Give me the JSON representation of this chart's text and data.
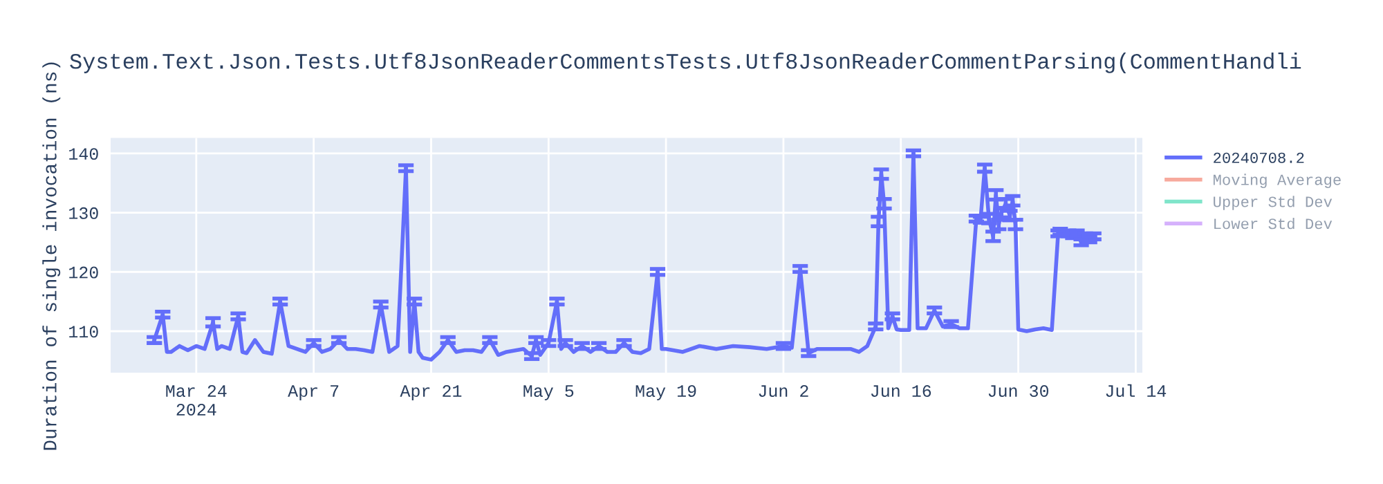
{
  "chart_data": {
    "type": "line",
    "title": "System.Text.Json.Tests.Utf8JsonReaderCommentsTests.Utf8JsonReaderCommentParsing(CommentHandli",
    "ylabel": "Duration of single invocation (ns)",
    "xlim": [
      "2024-03-13T19:00",
      "2024-07-14T19:00"
    ],
    "xticks": [
      {
        "value": "2024-03-24",
        "label": "Mar 24\n2024"
      },
      {
        "value": "2024-04-07",
        "label": "Apr 7"
      },
      {
        "value": "2024-04-21",
        "label": "Apr 21"
      },
      {
        "value": "2024-05-05",
        "label": "May 5"
      },
      {
        "value": "2024-05-19",
        "label": "May 19"
      },
      {
        "value": "2024-06-02",
        "label": "Jun 2"
      },
      {
        "value": "2024-06-16",
        "label": "Jun 16"
      },
      {
        "value": "2024-06-30",
        "label": "Jun 30"
      },
      {
        "value": "2024-07-14",
        "label": "Jul 14"
      }
    ],
    "ylim": [
      103,
      142.6
    ],
    "yticks": [
      110,
      120,
      130,
      140
    ],
    "grid": true,
    "legend": "top right",
    "marker": "none",
    "line_style": "solid",
    "series": [
      {
        "name": "20240708.2",
        "color": "#636efa",
        "x": [
          "2024-03-19",
          "2024-03-20",
          "2024-03-20T12:00",
          "2024-03-21",
          "2024-03-22",
          "2024-03-23",
          "2024-03-24",
          "2024-03-25",
          "2024-03-26",
          "2024-03-26T12:00",
          "2024-03-27",
          "2024-03-28",
          "2024-03-29",
          "2024-03-29T12:00",
          "2024-03-30",
          "2024-03-31",
          "2024-04-01",
          "2024-04-02",
          "2024-04-03",
          "2024-04-04",
          "2024-04-05",
          "2024-04-06",
          "2024-04-07",
          "2024-04-08",
          "2024-04-09",
          "2024-04-10",
          "2024-04-11",
          "2024-04-12",
          "2024-04-13",
          "2024-04-14",
          "2024-04-15",
          "2024-04-16",
          "2024-04-17",
          "2024-04-18",
          "2024-04-18T12:00",
          "2024-04-19",
          "2024-04-19T12:00",
          "2024-04-20",
          "2024-04-21",
          "2024-04-22",
          "2024-04-23",
          "2024-04-24",
          "2024-04-25",
          "2024-04-26",
          "2024-04-27",
          "2024-04-28",
          "2024-04-29",
          "2024-04-30",
          "2024-05-02",
          "2024-05-03",
          "2024-05-03T12:00",
          "2024-05-04",
          "2024-05-05",
          "2024-05-06",
          "2024-05-06T12:00",
          "2024-05-07",
          "2024-05-08",
          "2024-05-09",
          "2024-05-10",
          "2024-05-11",
          "2024-05-12",
          "2024-05-13",
          "2024-05-14",
          "2024-05-15",
          "2024-05-16",
          "2024-05-17",
          "2024-05-18",
          "2024-05-18T12:00",
          "2024-05-19",
          "2024-05-21",
          "2024-05-23",
          "2024-05-25",
          "2024-05-27",
          "2024-05-29",
          "2024-05-31",
          "2024-06-02",
          "2024-06-03",
          "2024-06-04",
          "2024-06-05",
          "2024-06-06",
          "2024-06-08",
          "2024-06-10",
          "2024-06-11",
          "2024-06-12",
          "2024-06-13",
          "2024-06-13T08:00",
          "2024-06-13T16:00",
          "2024-06-14",
          "2024-06-14T12:00",
          "2024-06-15",
          "2024-06-15T12:00",
          "2024-06-16",
          "2024-06-17",
          "2024-06-17T12:00",
          "2024-06-18",
          "2024-06-19",
          "2024-06-20",
          "2024-06-21",
          "2024-06-22",
          "2024-06-23",
          "2024-06-24",
          "2024-06-25",
          "2024-06-25T12:00",
          "2024-06-26",
          "2024-06-26T12:00",
          "2024-06-27",
          "2024-06-27T08:00",
          "2024-06-27T16:00",
          "2024-06-28",
          "2024-06-28T12:00",
          "2024-06-29",
          "2024-06-29T08:00",
          "2024-06-29T16:00",
          "2024-06-30",
          "2024-07-01",
          "2024-07-02",
          "2024-07-03",
          "2024-07-04",
          "2024-07-04T18:00",
          "2024-07-05",
          "2024-07-06",
          "2024-07-06T12:00",
          "2024-07-07",
          "2024-07-07T12:00",
          "2024-07-08",
          "2024-07-08T12:00",
          "2024-07-09"
        ],
        "values": [
          108.5,
          112.8,
          106.5,
          106.5,
          107.5,
          106.8,
          107.5,
          107,
          111.5,
          107,
          107.5,
          107,
          112.5,
          106.5,
          106.3,
          108.5,
          106.5,
          106.2,
          115,
          107.5,
          107,
          106.5,
          108,
          106.5,
          107,
          108.5,
          107,
          107,
          106.8,
          106.5,
          114.5,
          106.5,
          107.5,
          137.5,
          106.5,
          115,
          106.5,
          105.5,
          105.2,
          106.5,
          108.5,
          106.5,
          106.8,
          106.8,
          106.5,
          108.5,
          106,
          106.5,
          107,
          105.8,
          108.5,
          106,
          108,
          115,
          107,
          108,
          106.5,
          107.5,
          106.5,
          107.5,
          106.5,
          106.5,
          108,
          106.5,
          106.3,
          107,
          120,
          107,
          107,
          106.5,
          107.5,
          107,
          107.5,
          107.3,
          107,
          107.5,
          107.2,
          120.5,
          106.3,
          107,
          107,
          107,
          106.5,
          107.5,
          110.8,
          128.5,
          136.5,
          131.5,
          110.5,
          112.5,
          110.3,
          110.2,
          110.2,
          140,
          110.5,
          110.5,
          113.5,
          110.8,
          111.2,
          110.5,
          110.5,
          129,
          128.8,
          137.5,
          129,
          126,
          133,
          128,
          130,
          131.5,
          129.5,
          132,
          128,
          110.3,
          110,
          110.3,
          110.5,
          110.2,
          126.5,
          126.8,
          126.5,
          126.2,
          126.5,
          125,
          126,
          125.5,
          126
        ],
        "errors": [
          0.5,
          0.5,
          null,
          null,
          null,
          null,
          null,
          null,
          0.7,
          null,
          null,
          null,
          0.5,
          null,
          null,
          null,
          null,
          null,
          0.5,
          null,
          null,
          null,
          0.5,
          null,
          null,
          0.5,
          null,
          null,
          null,
          null,
          0.5,
          null,
          null,
          0.5,
          null,
          0.5,
          null,
          null,
          null,
          null,
          0.5,
          null,
          null,
          null,
          null,
          0.5,
          null,
          null,
          null,
          0.5,
          0.5,
          null,
          0.5,
          0.5,
          null,
          0.5,
          null,
          0.5,
          null,
          0.5,
          null,
          null,
          0.5,
          null,
          null,
          null,
          0.5,
          null,
          null,
          null,
          null,
          null,
          null,
          null,
          null,
          0.5,
          null,
          0.5,
          0.5,
          null,
          null,
          null,
          null,
          null,
          0.5,
          0.8,
          0.8,
          0.8,
          null,
          0.5,
          null,
          null,
          null,
          0.5,
          null,
          null,
          0.5,
          null,
          0.5,
          null,
          null,
          0.5,
          0.5,
          0.6,
          0.8,
          0.8,
          0.8,
          0.8,
          0.8,
          0.8,
          0.8,
          0.8,
          0.8,
          null,
          null,
          null,
          null,
          null,
          0.5,
          0.5,
          0.5,
          0.5,
          0.5,
          0.5,
          0.5,
          0.5,
          0.5
        ]
      },
      {
        "name": "Moving Average",
        "color": "#ef553b"
      },
      {
        "name": "Upper Std Dev",
        "color": "#00cc96"
      },
      {
        "name": "Lower Std Dev",
        "color": "#ab63fa"
      }
    ]
  }
}
